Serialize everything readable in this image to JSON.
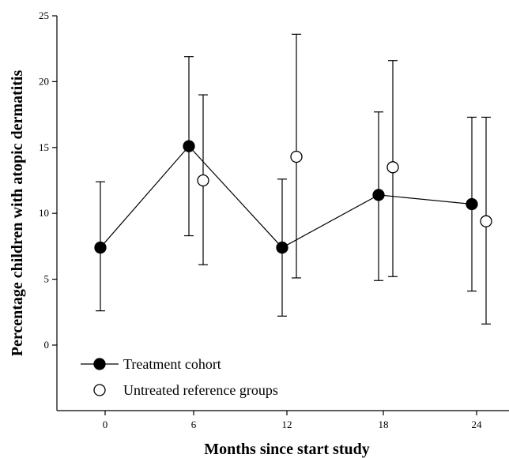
{
  "chart_data": {
    "type": "scatter",
    "xlabel": "Months since start study",
    "ylabel": "Percentage children with atopic dermatitis",
    "xticks": [
      0,
      6,
      12,
      18,
      24
    ],
    "yticks": [
      0,
      5,
      10,
      15,
      20,
      25
    ],
    "ylim": [
      -5,
      25
    ],
    "grid": false,
    "legend_position": "bottom-left",
    "series": [
      {
        "name": "Treatment cohort",
        "marker": "filled-circle",
        "connected": true,
        "x": [
          0,
          6,
          12,
          18,
          24
        ],
        "y": [
          7.4,
          15.1,
          7.4,
          11.4,
          10.7
        ],
        "lower": [
          2.6,
          8.3,
          2.2,
          4.9,
          4.1
        ],
        "upper": [
          12.4,
          21.9,
          12.6,
          17.7,
          17.3
        ]
      },
      {
        "name": "Untreated reference groups",
        "marker": "open-circle",
        "connected": false,
        "x": [
          6,
          12,
          18,
          24
        ],
        "y": [
          12.5,
          14.3,
          13.5,
          9.4
        ],
        "lower": [
          6.1,
          5.1,
          5.2,
          1.6
        ],
        "upper": [
          19.0,
          23.6,
          21.6,
          17.3
        ]
      }
    ]
  }
}
